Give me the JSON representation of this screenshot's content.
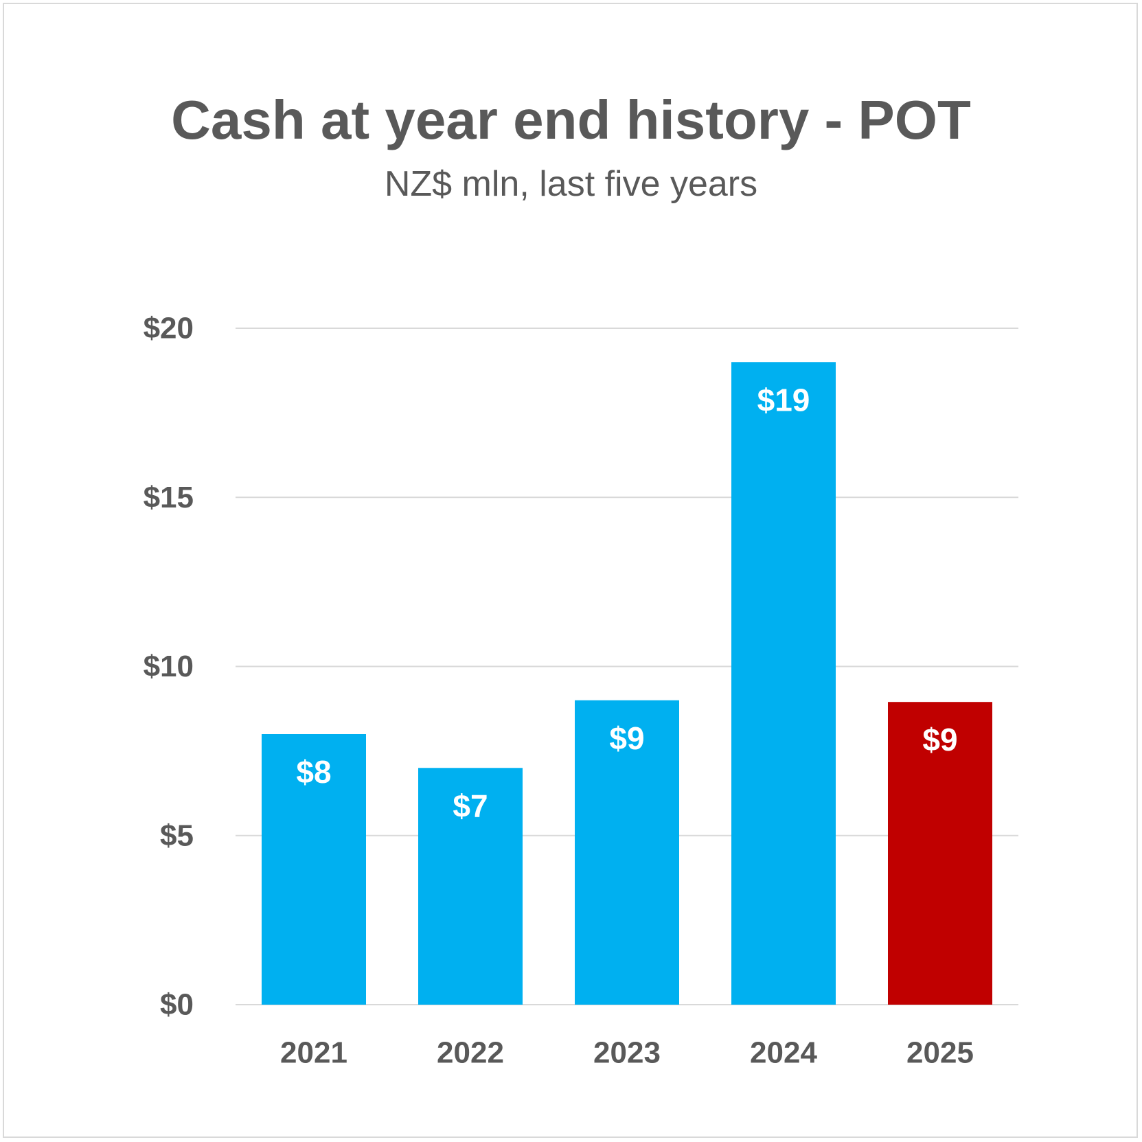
{
  "chart_data": {
    "type": "bar",
    "title": "Cash at year end history - POT",
    "subtitle": "NZ$ mln, last five years",
    "categories": [
      "2021",
      "2022",
      "2023",
      "2024",
      "2025"
    ],
    "values": [
      8,
      7,
      9,
      19,
      8.95
    ],
    "data_labels": [
      "$8",
      "$7",
      "$9",
      "$19",
      "$9"
    ],
    "ylim": [
      0,
      20
    ],
    "y_ticks": [
      0,
      5,
      10,
      15,
      20
    ],
    "y_tick_labels": [
      "$0",
      "$5",
      "$10",
      "$15",
      "$20"
    ],
    "grid": true,
    "legend": "none",
    "colors": {
      "default_bar": "#00b0f0",
      "highlight_bar": "#c00000",
      "text": "#595959",
      "gridline": "#d9d9d9",
      "data_label": "#ffffff"
    },
    "highlight_index": 4
  }
}
